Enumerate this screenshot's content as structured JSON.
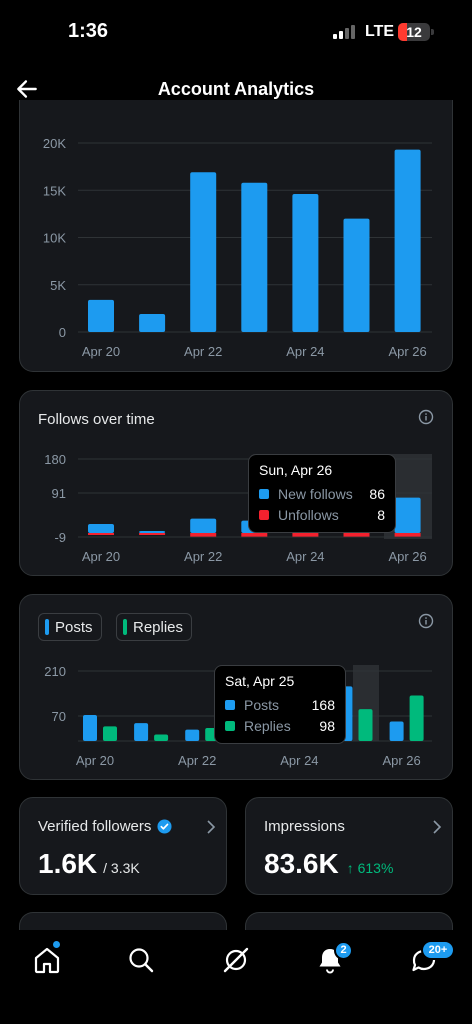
{
  "status": {
    "time": "1:36",
    "network": "LTE",
    "battery": "12"
  },
  "header": {
    "title": "Account Analytics"
  },
  "impressions_chart": {
    "chart_data": {
      "type": "bar",
      "categories": [
        "Apr 20",
        "Apr 21",
        "Apr 22",
        "Apr 23",
        "Apr 24",
        "Apr 25",
        "Apr 26"
      ],
      "x_tick_labels": [
        "Apr 20",
        "Apr 22",
        "Apr 24",
        "Apr 26"
      ],
      "values": [
        3400,
        1900,
        16900,
        15800,
        14600,
        12000,
        19300
      ],
      "y_ticks": [
        "20K",
        "15K",
        "10K",
        "5K",
        "0"
      ],
      "ylim": [
        0,
        20000
      ],
      "color": "#1d9bf0"
    }
  },
  "follows_chart": {
    "title": "Follows over time",
    "chart_data": {
      "type": "bar",
      "categories": [
        "Apr 20",
        "Apr 21",
        "Apr 22",
        "Apr 23",
        "Apr 24",
        "Apr 25",
        "Apr 26"
      ],
      "x_tick_labels": [
        "Apr 20",
        "Apr 22",
        "Apr 24",
        "Apr 26"
      ],
      "series": [
        {
          "name": "New follows",
          "color": "#1d9bf0",
          "values": [
            22,
            5,
            35,
            30,
            60,
            40,
            86
          ]
        },
        {
          "name": "Unfollows",
          "color": "#f4212e",
          "values": [
            3,
            2,
            8,
            8,
            8,
            8,
            8
          ]
        }
      ],
      "y_ticks": [
        "180",
        "91",
        "-9"
      ],
      "ylim": [
        -9,
        180
      ]
    },
    "tooltip": {
      "date": "Sun, Apr 26",
      "rows": [
        {
          "label": "New follows",
          "value": "86"
        },
        {
          "label": "Unfollows",
          "value": "8"
        }
      ]
    }
  },
  "posts_chart": {
    "legend": {
      "posts": "Posts",
      "replies": "Replies"
    },
    "chart_data": {
      "type": "bar",
      "categories": [
        "Apr 20",
        "Apr 21",
        "Apr 22",
        "Apr 23",
        "Apr 24",
        "Apr 25",
        "Apr 26"
      ],
      "x_tick_labels": [
        "Apr 20",
        "Apr 22",
        "Apr 24",
        "Apr 26"
      ],
      "series": [
        {
          "name": "Posts",
          "color": "#1d9bf0",
          "values": [
            80,
            55,
            35,
            40,
            30,
            168,
            60
          ]
        },
        {
          "name": "Replies",
          "color": "#00ba7c",
          "values": [
            45,
            20,
            40,
            30,
            25,
            98,
            140
          ]
        }
      ],
      "y_ticks": [
        "210",
        "70"
      ],
      "ylim": [
        0,
        240
      ]
    },
    "tooltip": {
      "date": "Sat, Apr 25",
      "rows": [
        {
          "label": "Posts",
          "value": "168"
        },
        {
          "label": "Replies",
          "value": "98"
        }
      ]
    }
  },
  "tiles": {
    "verified": {
      "label": "Verified followers",
      "value": "1.6K",
      "total": "/ 3.3K"
    },
    "impressions": {
      "label": "Impressions",
      "value": "83.6K",
      "delta": "↑ 613%"
    }
  },
  "nav": {
    "icons": [
      "home-icon",
      "search-icon",
      "grok-icon",
      "notifications-icon",
      "messages-icon"
    ],
    "notifications_badge": "2",
    "messages_badge": "20+"
  }
}
